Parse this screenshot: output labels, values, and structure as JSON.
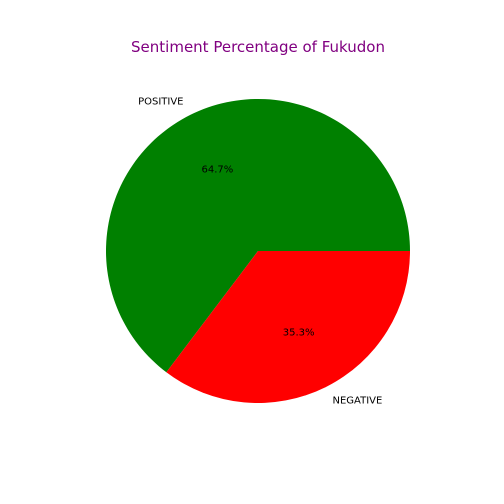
{
  "chart_data": {
    "type": "pie",
    "title": "Sentiment Percentage of Fukudon",
    "categories": [
      "POSITIVE",
      "NEGATIVE"
    ],
    "values": [
      64.7,
      35.3
    ],
    "percent_labels": [
      "64.7%",
      "35.3%"
    ],
    "colors": [
      "#008000",
      "#ff0000"
    ],
    "title_color": "#800080",
    "start_angle_deg": 0,
    "direction": "counterclockwise",
    "legend": "none"
  }
}
